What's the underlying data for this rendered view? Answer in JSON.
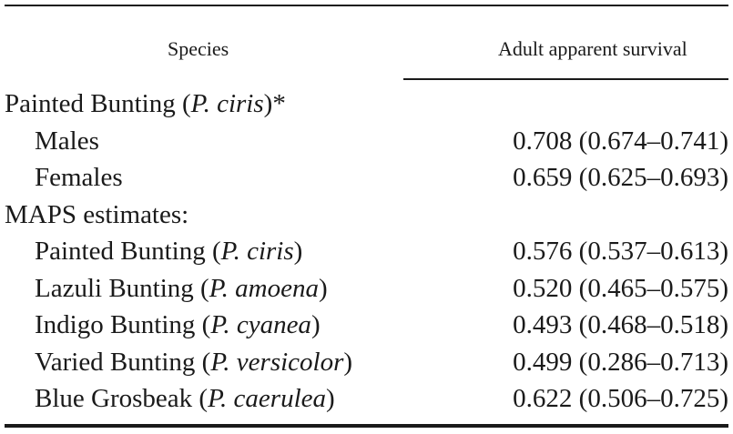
{
  "table": {
    "headers": {
      "species": "Species",
      "survival": "Adult apparent survival"
    },
    "rows": [
      {
        "name": "Painted Bunting (",
        "sci": "P. ciris",
        "close": ")*",
        "value": ""
      },
      {
        "name": "Males",
        "sci": "",
        "close": "",
        "value": "0.708 (0.674–0.741)"
      },
      {
        "name": "Females",
        "sci": "",
        "close": "",
        "value": "0.659 (0.625–0.693)"
      },
      {
        "name": "MAPS estimates:",
        "sci": "",
        "close": "",
        "value": ""
      },
      {
        "name": "Painted Bunting (",
        "sci": "P. ciris",
        "close": ")",
        "value": "0.576 (0.537–0.613)"
      },
      {
        "name": "Lazuli Bunting (",
        "sci": "P. amoena",
        "close": ")",
        "value": "0.520 (0.465–0.575)"
      },
      {
        "name": "Indigo Bunting (",
        "sci": "P. cyanea",
        "close": ")",
        "value": "0.493 (0.468–0.518)"
      },
      {
        "name": "Varied Bunting (",
        "sci": "P. versicolor",
        "close": ")",
        "value": "0.499 (0.286–0.713)"
      },
      {
        "name": "Blue Grosbeak (",
        "sci": "P. caerulea",
        "close": ")",
        "value": "0.622 (0.506–0.725)"
      }
    ]
  }
}
